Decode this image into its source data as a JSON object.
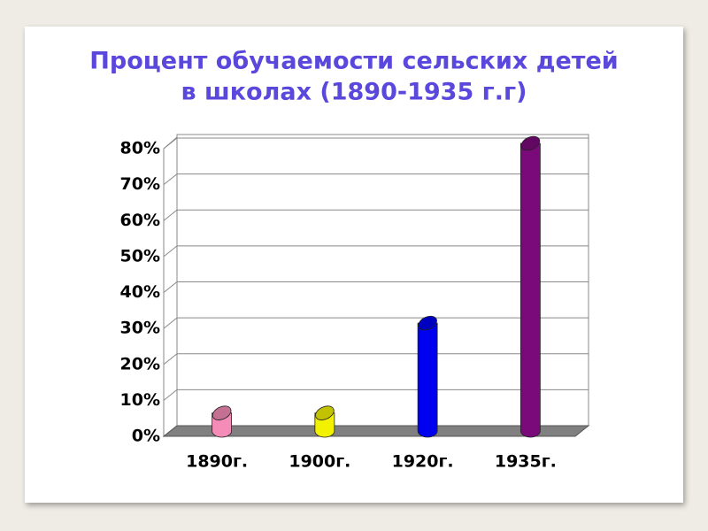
{
  "chart_data": {
    "type": "bar",
    "title_lines": [
      "Процент обучаемости сельских детей",
      "в школах (1890-1935 г.г)"
    ],
    "categories": [
      "1890г.",
      "1900г.",
      "1920г.",
      "1935г."
    ],
    "values": [
      5,
      5,
      30,
      80
    ],
    "colors": [
      "#f58cb8",
      "#f2f200",
      "#0000f0",
      "#7a0a7a"
    ],
    "ylim": [
      0,
      80
    ],
    "yticks": [
      {
        "value": 0,
        "label": "0%"
      },
      {
        "value": 10,
        "label": "10%"
      },
      {
        "value": 20,
        "label": "20%"
      },
      {
        "value": 30,
        "label": "30%"
      },
      {
        "value": 40,
        "label": "40%"
      },
      {
        "value": 50,
        "label": "50%"
      },
      {
        "value": 60,
        "label": "60%"
      },
      {
        "value": 70,
        "label": "70%"
      },
      {
        "value": 80,
        "label": "80%"
      }
    ],
    "grid": true
  }
}
